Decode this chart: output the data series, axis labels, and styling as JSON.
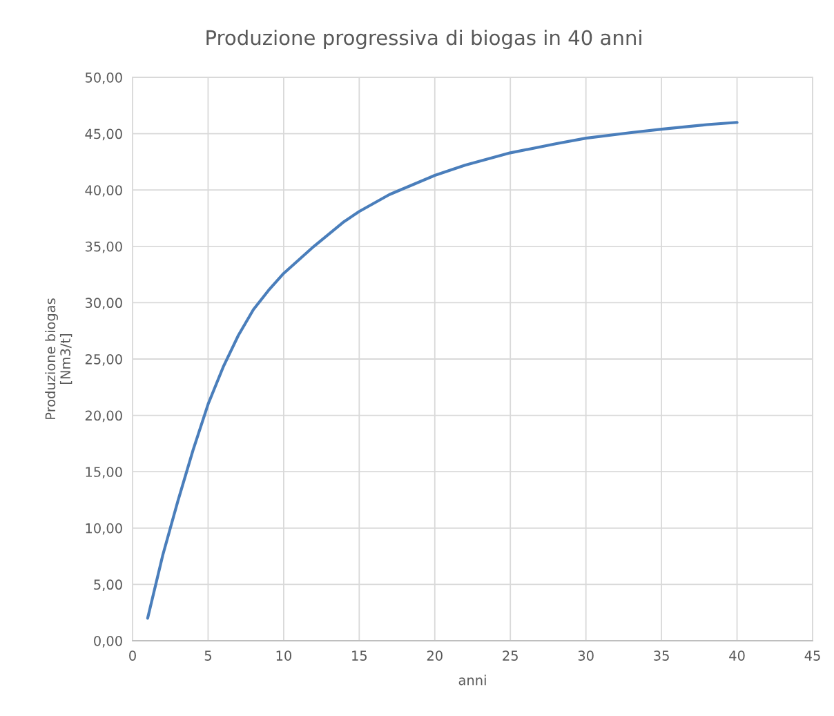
{
  "chart_data": {
    "type": "line",
    "title": "Produzione progressiva di biogas in 40 anni",
    "xlabel": "anni",
    "ylabel": "Produzione biogas\n[Nm3/t]",
    "series": [
      {
        "color": "#4a7ebb",
        "x": [
          1,
          2,
          3,
          4,
          5,
          6,
          7,
          8,
          9,
          10,
          12,
          14,
          15,
          17,
          20,
          22,
          25,
          28,
          30,
          33,
          35,
          38,
          40
        ],
        "values": [
          2.0,
          7.6,
          12.4,
          16.9,
          21.0,
          24.3,
          27.1,
          29.4,
          31.1,
          32.6,
          35.0,
          37.2,
          38.1,
          39.6,
          41.3,
          42.2,
          43.3,
          44.1,
          44.6,
          45.1,
          45.4,
          45.8,
          46.0
        ]
      }
    ],
    "xlim": [
      0,
      45
    ],
    "xticks": [
      0,
      5,
      10,
      15,
      20,
      25,
      30,
      35,
      40,
      45
    ],
    "ylim": [
      0,
      50
    ],
    "yticks": [
      {
        "value": 0,
        "label": "0,00"
      },
      {
        "value": 5,
        "label": "5,00"
      },
      {
        "value": 10,
        "label": "10,00"
      },
      {
        "value": 15,
        "label": "15,00"
      },
      {
        "value": 20,
        "label": "20,00"
      },
      {
        "value": 25,
        "label": "25,00"
      },
      {
        "value": 30,
        "label": "30,00"
      },
      {
        "value": 35,
        "label": "35,00"
      },
      {
        "value": 40,
        "label": "40,00"
      },
      {
        "value": 45,
        "label": "45,00"
      },
      {
        "value": 50,
        "label": "50,00"
      }
    ],
    "grid": true,
    "marker": "none",
    "line_style": "solid",
    "legend": false
  }
}
